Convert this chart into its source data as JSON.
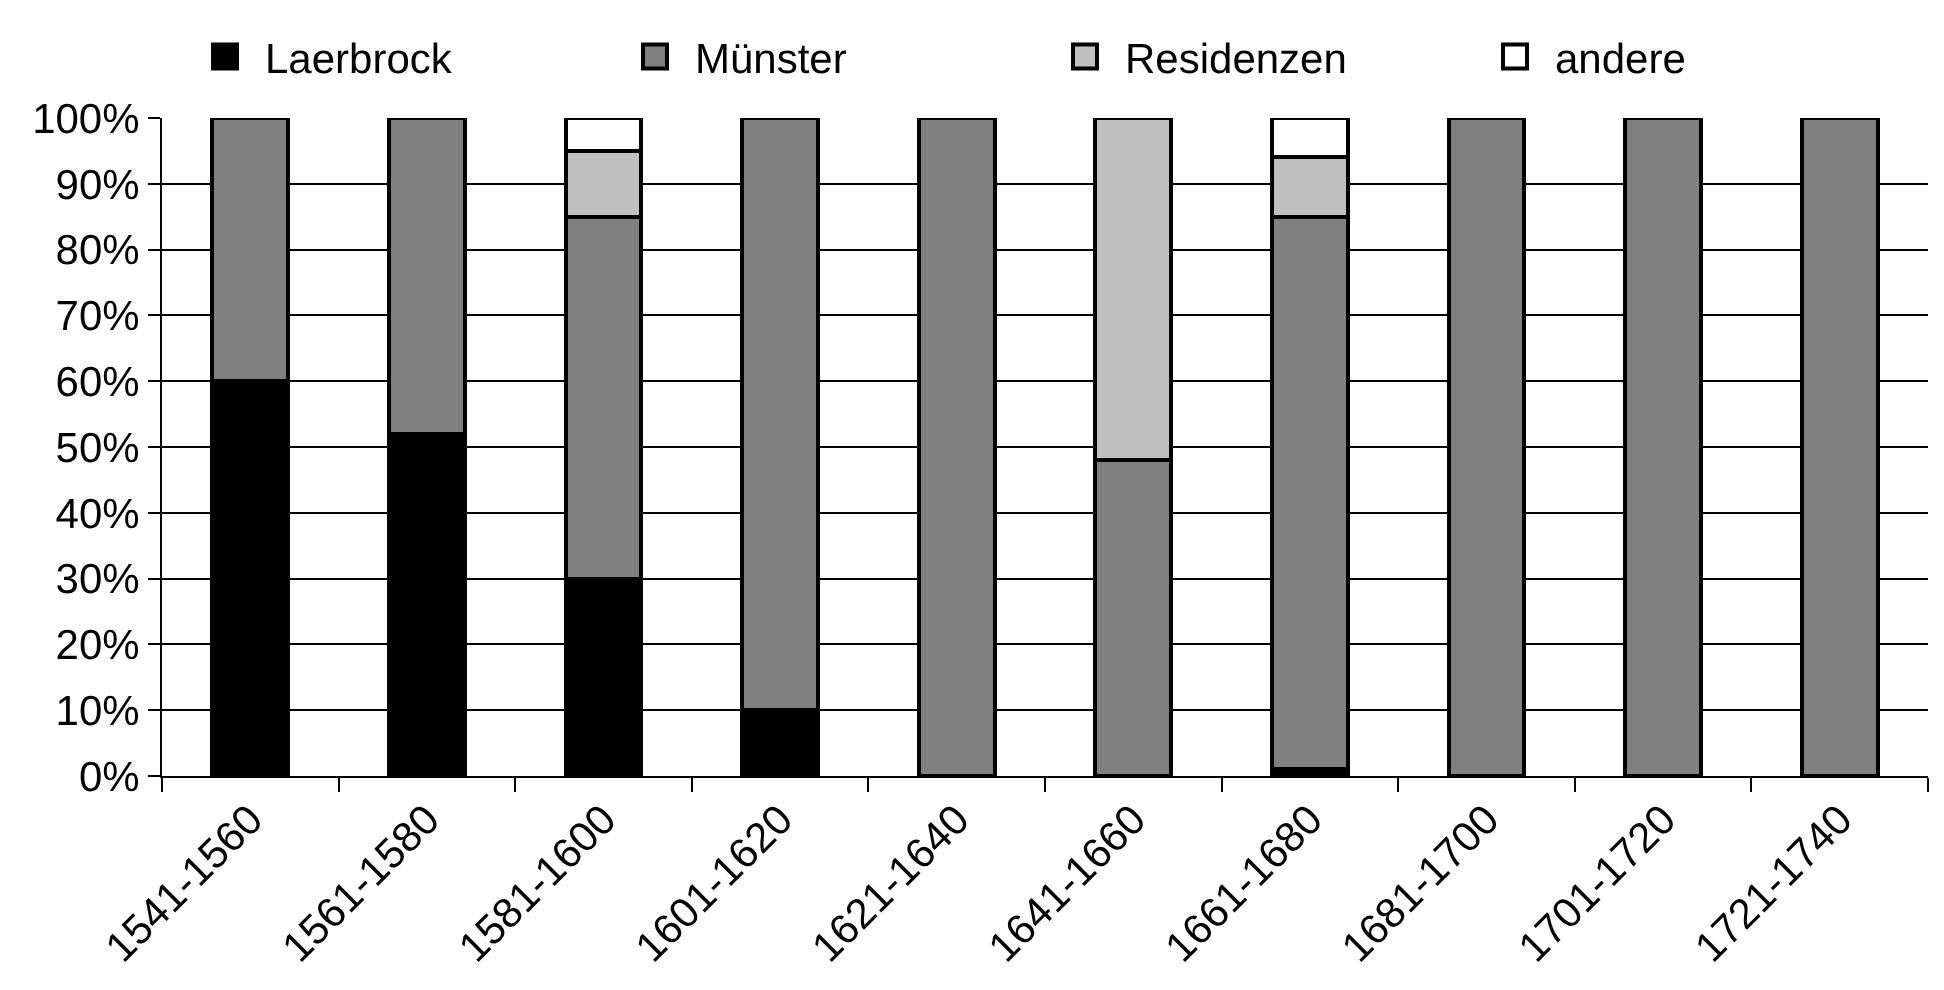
{
  "chart_data": {
    "type": "bar",
    "stacked": true,
    "categories": [
      "1541-1560",
      "1561-1580",
      "1581-1600",
      "1601-1620",
      "1621-1640",
      "1641-1660",
      "1661-1680",
      "1681-1700",
      "1701-1720",
      "1721-1740"
    ],
    "series": [
      {
        "name": "Laerbrock",
        "color": "#000000",
        "values": [
          60,
          52,
          30,
          10,
          null,
          null,
          1,
          null,
          null,
          null
        ]
      },
      {
        "name": "Münster",
        "color": "#808080",
        "values": [
          40,
          48,
          55,
          90,
          100,
          48,
          84,
          100,
          100,
          100
        ]
      },
      {
        "name": "Residenzen",
        "color": "#c0c0c0",
        "values": [
          null,
          null,
          10,
          null,
          null,
          52,
          9,
          null,
          null,
          null
        ]
      },
      {
        "name": "andere",
        "color": "#ffffff",
        "values": [
          null,
          null,
          5,
          null,
          null,
          null,
          6,
          null,
          null,
          null
        ]
      }
    ],
    "ylim": [
      0,
      100
    ],
    "yticks": [
      {
        "value": 0,
        "label": "0%"
      },
      {
        "value": 10,
        "label": "10%"
      },
      {
        "value": 20,
        "label": "20%"
      },
      {
        "value": 30,
        "label": "30%"
      },
      {
        "value": 40,
        "label": "40%"
      },
      {
        "value": 50,
        "label": "50%"
      },
      {
        "value": 60,
        "label": "60%"
      },
      {
        "value": 70,
        "label": "70%"
      },
      {
        "value": 80,
        "label": "80%"
      },
      {
        "value": 90,
        "label": "90%"
      },
      {
        "value": 100,
        "label": "100%"
      }
    ],
    "grid": "y",
    "legend": "top"
  }
}
